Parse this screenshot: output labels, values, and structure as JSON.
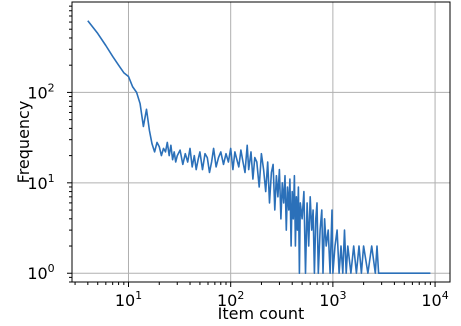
{
  "chart_data": {
    "type": "line",
    "title": "",
    "xlabel": "Item count",
    "ylabel": "Frequency",
    "xscale": "log",
    "yscale": "log",
    "xlim": [
      2.8,
      14000
    ],
    "ylim": [
      0.8,
      1000
    ],
    "grid": true,
    "legend": "none",
    "x_ticks": [
      {
        "value": 10,
        "base": "10",
        "exp": "1"
      },
      {
        "value": 100,
        "base": "10",
        "exp": "2"
      },
      {
        "value": 1000,
        "base": "10",
        "exp": "3"
      },
      {
        "value": 10000,
        "base": "10",
        "exp": "4"
      }
    ],
    "y_ticks": [
      {
        "value": 1,
        "base": "10",
        "exp": "0"
      },
      {
        "value": 10,
        "base": "10",
        "exp": "1"
      },
      {
        "value": 100,
        "base": "10",
        "exp": "2"
      }
    ],
    "series": [
      {
        "color": "#2b70b9",
        "x": [
          4,
          5,
          6,
          7,
          8,
          9,
          10,
          11,
          12,
          13,
          14,
          15,
          16,
          17,
          18,
          19,
          20,
          21,
          22,
          23,
          24,
          25,
          26,
          27,
          28,
          29,
          30,
          32,
          34,
          36,
          38,
          40,
          42,
          44,
          46,
          48,
          50,
          53,
          56,
          59,
          62,
          65,
          68,
          72,
          76,
          80,
          85,
          90,
          95,
          100,
          105,
          110,
          115,
          120,
          126,
          132,
          138,
          145,
          150,
          158,
          165,
          172,
          180,
          190,
          200,
          210,
          220,
          230,
          240,
          250,
          260,
          270,
          280,
          290,
          300,
          310,
          320,
          330,
          340,
          350,
          360,
          370,
          380,
          390,
          400,
          410,
          420,
          430,
          440,
          450,
          460,
          470,
          480,
          500,
          520,
          540,
          560,
          580,
          600,
          620,
          640,
          660,
          680,
          700,
          720,
          750,
          780,
          800,
          830,
          860,
          900,
          940,
          980,
          1000,
          1050,
          1100,
          1150,
          1200,
          1250,
          1300,
          1350,
          1400,
          1500,
          1600,
          1700,
          1800,
          1900,
          2000,
          2200,
          2400,
          2600,
          2700,
          2800,
          3000,
          4000,
          6000,
          9000
        ],
        "y": [
          620,
          450,
          330,
          250,
          200,
          165,
          150,
          115,
          100,
          75,
          42,
          65,
          38,
          27,
          22,
          28,
          25,
          20,
          24,
          22,
          28,
          20,
          26,
          18,
          22,
          17,
          20,
          23,
          16,
          21,
          17,
          24,
          15,
          20,
          14,
          18,
          22,
          14,
          21,
          19,
          13,
          17,
          24,
          15,
          19,
          22,
          16,
          21,
          17,
          24,
          14,
          22,
          18,
          15,
          23,
          17,
          13,
          26,
          14,
          22,
          11,
          19,
          17,
          9,
          21,
          14,
          8,
          17,
          6,
          13,
          16,
          5,
          12,
          7,
          14,
          4,
          10,
          6,
          12,
          3,
          9,
          5,
          11,
          2,
          8,
          4,
          12,
          2,
          7,
          3,
          9,
          1,
          6,
          4,
          8,
          1,
          6,
          2,
          7,
          3,
          5,
          1,
          4,
          6,
          1,
          3,
          5,
          1,
          4,
          2,
          3,
          1,
          5,
          1,
          2,
          3,
          1,
          2,
          1,
          3,
          1,
          2,
          1,
          2,
          1,
          2,
          1,
          2,
          1,
          2,
          1,
          2,
          1,
          1,
          1,
          1,
          1
        ]
      }
    ]
  }
}
